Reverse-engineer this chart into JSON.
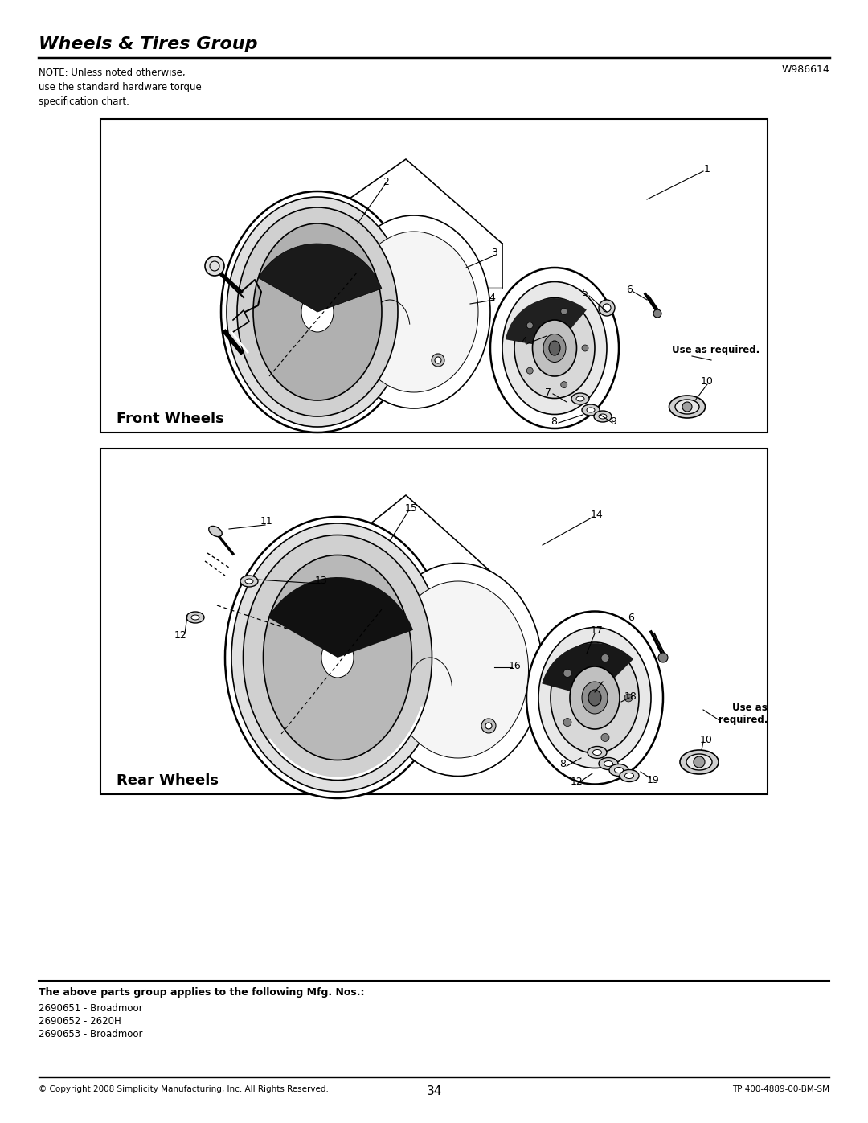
{
  "title": "Wheels & Tires Group",
  "part_number": "W986614",
  "note_text": "NOTE: Unless noted otherwise,\nuse the standard hardware torque\nspecification chart.",
  "front_label": "Front Wheels",
  "rear_label": "Rear Wheels",
  "applies_text": "The above parts group applies to the following Mfg. Nos.:",
  "mfg_nos": [
    "2690651 - Broadmoor",
    "2690652 - 2620H",
    "2690653 - Broadmoor"
  ],
  "copyright": "© Copyright 2008 Simplicity Manufacturing, Inc. All Rights Reserved.",
  "page_number": "34",
  "tp_number": "TP 400-4889-00-BM-SM",
  "bg_color": "#ffffff",
  "text_color": "#000000",
  "lw_thick": 1.8,
  "lw_med": 1.2,
  "lw_thin": 0.7
}
